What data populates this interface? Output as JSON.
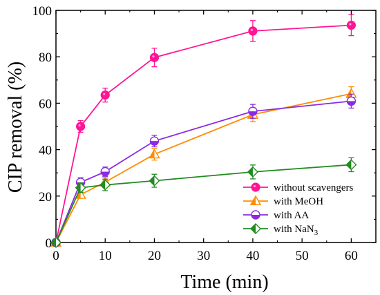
{
  "chart_data": {
    "type": "line",
    "xlabel": "Time (min)",
    "ylabel": "CIP removal (%)",
    "xlim": [
      0,
      65
    ],
    "ylim": [
      0,
      100
    ],
    "x_ticks": [
      0,
      10,
      20,
      30,
      40,
      50,
      60
    ],
    "y_ticks": [
      0,
      20,
      40,
      60,
      80,
      100
    ],
    "grid": false,
    "legend_position": "lower-right",
    "series": [
      {
        "name": "without scavengers",
        "color": "#ff1493",
        "marker": "circle-filled",
        "x": [
          0,
          5,
          10,
          20,
          40,
          60
        ],
        "y": [
          0,
          50,
          63.5,
          79.7,
          91.1,
          93.6
        ],
        "yerr": [
          0,
          2.5,
          3.0,
          4.0,
          4.5,
          4.5
        ]
      },
      {
        "name": "with MeOH",
        "color": "#ff8c00",
        "marker": "triangle-half",
        "x": [
          0,
          5,
          10,
          20,
          40,
          60
        ],
        "y": [
          0,
          20.6,
          26.0,
          38.0,
          55.1,
          64.1
        ],
        "yerr": [
          0,
          1.5,
          2.0,
          2.5,
          3.0,
          3.0
        ]
      },
      {
        "name": "with AA",
        "color": "#8a2be2",
        "marker": "circle-half",
        "x": [
          0,
          5,
          10,
          20,
          40,
          60
        ],
        "y": [
          0,
          25.9,
          30.5,
          43.7,
          56.5,
          60.9
        ],
        "yerr": [
          0,
          2.0,
          2.0,
          2.5,
          3.0,
          3.0
        ]
      },
      {
        "name": "with NaN3",
        "name_main": "with NaN",
        "name_sub": "3",
        "color": "#228b22",
        "marker": "diamond-half",
        "x": [
          0,
          5,
          10,
          20,
          40,
          60
        ],
        "y": [
          0,
          23.6,
          24.8,
          26.6,
          30.4,
          33.5
        ],
        "yerr": [
          0,
          2.0,
          2.5,
          2.8,
          3.0,
          3.0
        ]
      }
    ]
  }
}
